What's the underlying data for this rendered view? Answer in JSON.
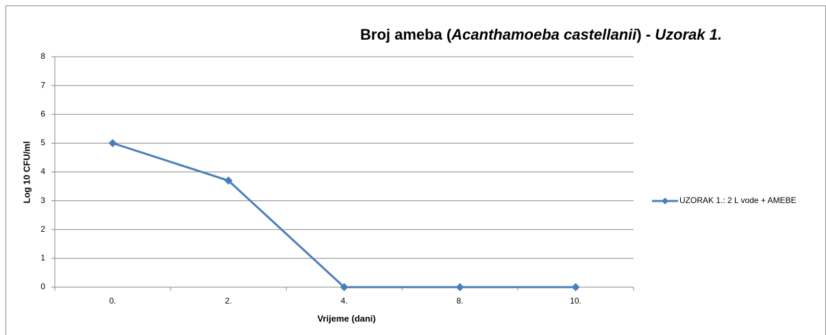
{
  "chart_data": {
    "type": "line",
    "title": [
      "Broj ameba (",
      "Acanthamoeba castellanii",
      ") - ",
      "Uzorak 1."
    ],
    "x_label": "Vrijeme (dani)",
    "y_label": "Log 10 CFU/ml",
    "categories": [
      "0.",
      "2.",
      "4.",
      "8.",
      "10."
    ],
    "series": [
      {
        "name": "UZORAK 1.: 2 L vode + AMEBE",
        "color": "#4a7ebb",
        "values": [
          5,
          3.7,
          0,
          0,
          0
        ]
      }
    ],
    "ylim": [
      0,
      8
    ],
    "yticks": [
      0,
      1,
      2,
      3,
      4,
      5,
      6,
      7,
      8
    ],
    "grid": true,
    "legend": "right"
  }
}
